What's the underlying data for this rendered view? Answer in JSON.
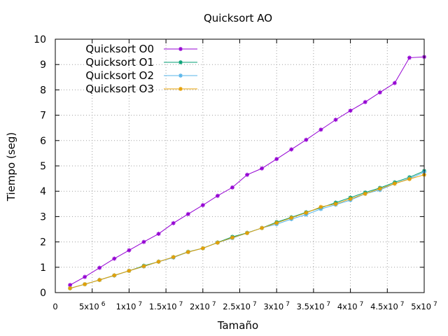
{
  "chart_data": {
    "type": "line",
    "title": "Quicksort AO",
    "xlabel": "Tamaño",
    "ylabel": "Tiempo (seg)",
    "xlim": [
      0,
      50000000
    ],
    "ylim": [
      0,
      10
    ],
    "grid": true,
    "legend_position": "top-left",
    "x_ticks": [
      {
        "value": 0,
        "base": "0",
        "exp": ""
      },
      {
        "value": 5000000,
        "base": "5x10",
        "exp": "6"
      },
      {
        "value": 10000000,
        "base": "1x10",
        "exp": "7"
      },
      {
        "value": 15000000,
        "base": "1.5x10",
        "exp": "7"
      },
      {
        "value": 20000000,
        "base": "2x10",
        "exp": "7"
      },
      {
        "value": 25000000,
        "base": "2.5x10",
        "exp": "7"
      },
      {
        "value": 30000000,
        "base": "3x10",
        "exp": "7"
      },
      {
        "value": 35000000,
        "base": "3.5x10",
        "exp": "7"
      },
      {
        "value": 40000000,
        "base": "4x10",
        "exp": "7"
      },
      {
        "value": 45000000,
        "base": "4.5x10",
        "exp": "7"
      },
      {
        "value": 50000000,
        "base": "5x10",
        "exp": "7"
      }
    ],
    "y_ticks": [
      0,
      1,
      2,
      3,
      4,
      5,
      6,
      7,
      8,
      9,
      10
    ],
    "x": [
      2000000,
      4000000,
      6000000,
      8000000,
      10000000,
      12000000,
      14000000,
      16000000,
      18000000,
      20000000,
      22000000,
      24000000,
      26000000,
      28000000,
      30000000,
      32000000,
      34000000,
      36000000,
      38000000,
      40000000,
      42000000,
      44000000,
      46000000,
      48000000,
      50000000
    ],
    "series": [
      {
        "name": "Quicksort O0",
        "color": "#9400d3",
        "marker": "asterisk",
        "values": [
          0.3,
          0.62,
          0.98,
          1.34,
          1.67,
          2.0,
          2.32,
          2.74,
          3.1,
          3.45,
          3.82,
          4.15,
          4.65,
          4.9,
          5.27,
          5.65,
          6.03,
          6.43,
          6.82,
          7.18,
          7.52,
          7.9,
          8.27,
          9.27,
          9.3
        ]
      },
      {
        "name": "Quicksort O1",
        "color": "#009e73",
        "marker": "asterisk",
        "values": [
          0.17,
          0.33,
          0.5,
          0.68,
          0.86,
          1.06,
          1.22,
          1.4,
          1.61,
          1.75,
          1.98,
          2.2,
          2.36,
          2.55,
          2.78,
          2.97,
          3.17,
          3.35,
          3.55,
          3.75,
          3.95,
          4.13,
          4.35,
          4.55,
          4.8
        ]
      },
      {
        "name": "Quicksort O2",
        "color": "#56b4e9",
        "marker": "asterisk",
        "values": [
          0.17,
          0.33,
          0.5,
          0.67,
          0.86,
          1.03,
          1.22,
          1.38,
          1.6,
          1.75,
          1.97,
          2.15,
          2.35,
          2.55,
          2.7,
          2.9,
          3.08,
          3.3,
          3.47,
          3.65,
          3.9,
          4.05,
          4.3,
          4.5,
          4.75
        ]
      },
      {
        "name": "Quicksort O3",
        "color": "#e69f00",
        "marker": "asterisk",
        "values": [
          0.17,
          0.33,
          0.5,
          0.68,
          0.86,
          1.04,
          1.22,
          1.4,
          1.6,
          1.75,
          1.97,
          2.17,
          2.35,
          2.55,
          2.75,
          2.95,
          3.15,
          3.38,
          3.5,
          3.7,
          3.9,
          4.1,
          4.3,
          4.48,
          4.65
        ]
      }
    ]
  }
}
